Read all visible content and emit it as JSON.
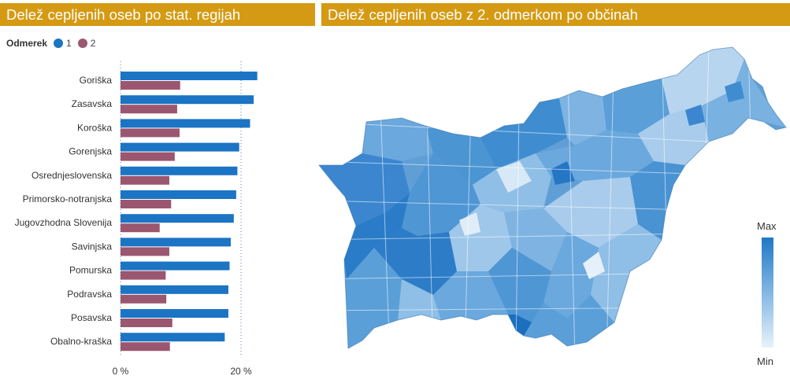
{
  "titles": {
    "left": "Delež cepljenih oseb po stat. regijah",
    "right": "Delež cepljenih oseb z 2. odmerkom po občinah"
  },
  "legend": {
    "title": "Odmerek",
    "items": [
      {
        "label": "1",
        "color": "#1b74c4"
      },
      {
        "label": "2",
        "color": "#9b5670"
      }
    ]
  },
  "chart_data": {
    "type": "bar",
    "orientation": "horizontal",
    "categories": [
      "Goriška",
      "Zasavska",
      "Koroška",
      "Gorenjska",
      "Osrednjeslovenska",
      "Primorsko-notranjska",
      "Jugovzhodna Slovenija",
      "Savinjska",
      "Pomurska",
      "Podravska",
      "Posavska",
      "Obalno-kraška"
    ],
    "series": [
      {
        "name": "1",
        "color": "#1b74c4",
        "values": [
          22.7,
          22.1,
          21.5,
          19.7,
          19.4,
          19.2,
          18.8,
          18.3,
          18.1,
          17.9,
          17.9,
          17.3
        ]
      },
      {
        "name": "2",
        "color": "#9b5670",
        "values": [
          9.9,
          9.4,
          9.8,
          9.0,
          8.1,
          8.4,
          6.5,
          8.1,
          7.5,
          7.6,
          8.6,
          8.2
        ]
      }
    ],
    "xlim": [
      0,
      24
    ],
    "xticks": [
      {
        "value": 0,
        "label": "0 %"
      },
      {
        "value": 20,
        "label": "20 %"
      }
    ],
    "grid": "dotted vertical lines at ticks"
  },
  "map": {
    "color_scale": {
      "max_label": "Max",
      "min_label": "Min",
      "max_color": "#1f78c6",
      "min_color": "#e8f2fb"
    }
  }
}
